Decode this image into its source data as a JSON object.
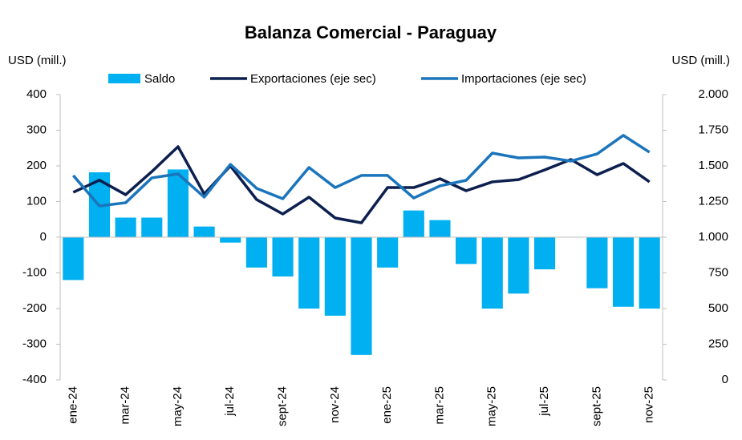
{
  "chart_data": {
    "type": "bar_line",
    "title": "Balanza Comercial - Paraguay",
    "y_label": "USD (mill.)",
    "y2_label": "USD (mill.)",
    "categories": [
      "ene-24",
      null,
      "mar-24",
      null,
      "may-24",
      null,
      "jul-24",
      null,
      "sept-24",
      null,
      "nov-24",
      null,
      "ene-25",
      null,
      "mar-25",
      null,
      "may-25",
      null,
      "jul-25",
      null,
      "sept-25",
      null,
      "nov-25"
    ],
    "series": [
      {
        "name": "Saldo",
        "type": "bar",
        "color": "#00b0f0",
        "values": [
          -120,
          182,
          55,
          55,
          190,
          30,
          -15,
          -85,
          -110,
          -200,
          -220,
          -330,
          -85,
          75,
          48,
          -75,
          -200,
          -158,
          -90,
          0,
          -143,
          -195,
          -200
        ]
      },
      {
        "name": "Exportaciones (eje sec)",
        "type": "line",
        "axis": "y2",
        "color": "#0c1f4e",
        "values": [
          1315,
          1400,
          1298,
          1460,
          1635,
          1303,
          1500,
          1264,
          1163,
          1281,
          1135,
          1101,
          1348,
          1348,
          1410,
          1326,
          1388,
          1404,
          1472,
          1545,
          1438,
          1517,
          1388
        ]
      },
      {
        "name": "Importaciones (eje sec)",
        "type": "line",
        "axis": "y2",
        "color": "#1b75bc",
        "values": [
          1433,
          1219,
          1242,
          1416,
          1444,
          1281,
          1511,
          1343,
          1270,
          1489,
          1348,
          1433,
          1433,
          1275,
          1360,
          1399,
          1590,
          1556,
          1562,
          1534,
          1584,
          1714,
          1596
        ]
      }
    ],
    "ylim": [
      -400,
      400
    ],
    "yticks": [
      -400,
      -300,
      -200,
      -100,
      0,
      100,
      200,
      300,
      400
    ],
    "y2lim": [
      0,
      2000
    ],
    "y2ticks": [
      0,
      {
        "value": 250,
        "label": "250"
      },
      {
        "value": 500,
        "label": "500"
      },
      {
        "value": 750,
        "label": "750"
      },
      {
        "value": 1000,
        "label": "1.000"
      },
      {
        "value": 1250,
        "label": "1.250"
      },
      {
        "value": 1500,
        "label": "1.500"
      },
      {
        "value": 1750,
        "label": "1.750"
      },
      {
        "value": 2000,
        "label": "2.000"
      }
    ]
  }
}
